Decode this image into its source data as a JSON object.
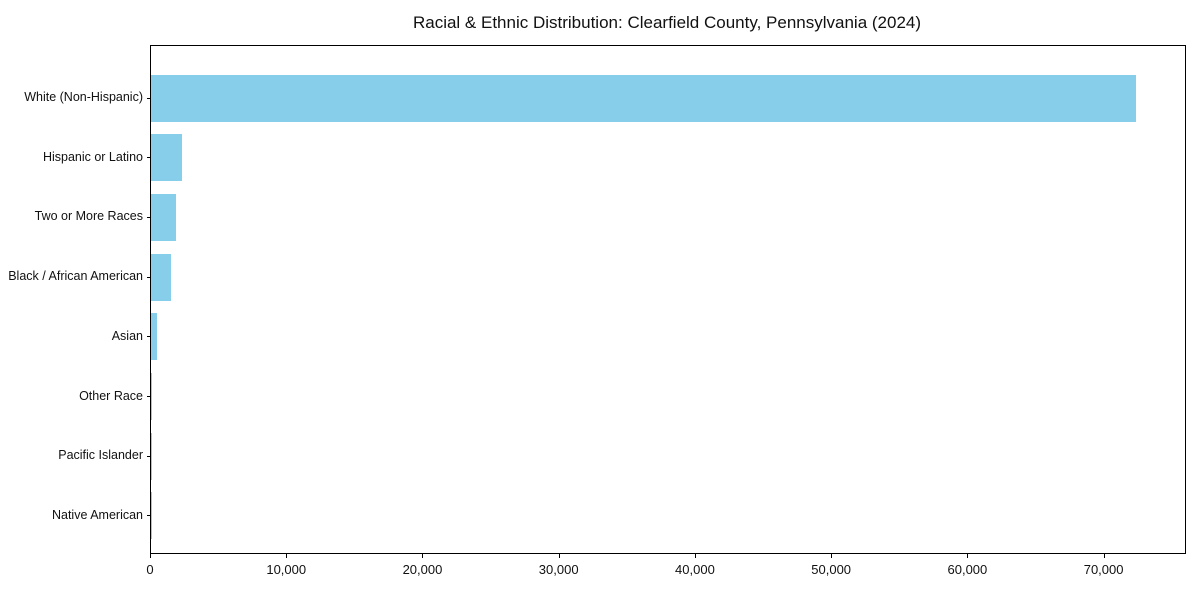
{
  "chart_data": {
    "type": "bar",
    "orientation": "horizontal",
    "title": "Racial & Ethnic Distribution: Clearfield County, Pennsylvania (2024)",
    "categories": [
      "White (Non-Hispanic)",
      "Hispanic or Latino",
      "Two or More Races",
      "Black / African American",
      "Asian",
      "Other Race",
      "Pacific Islander",
      "Native American"
    ],
    "values": [
      72300,
      2300,
      1850,
      1450,
      450,
      100,
      40,
      30
    ],
    "xlabel": "",
    "ylabel": "",
    "xlim": [
      0,
      75900
    ],
    "xticks": [
      0,
      10000,
      20000,
      30000,
      40000,
      50000,
      60000,
      70000
    ],
    "xtick_labels": [
      "0",
      "10,000",
      "20,000",
      "30,000",
      "40,000",
      "50,000",
      "60,000",
      "70,000"
    ],
    "bar_color": "#87CEEB",
    "axis_color": "#000000",
    "text_color": "#111111",
    "grid": false,
    "legend": null
  }
}
